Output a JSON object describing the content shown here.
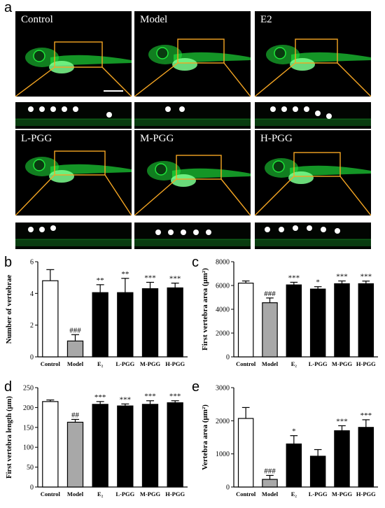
{
  "figure": {
    "panel_a_letter": "a",
    "panel_b_letter": "b",
    "panel_c_letter": "c",
    "panel_d_letter": "d",
    "panel_e_letter": "e",
    "fish_images": [
      {
        "label": "Control",
        "dots": 6
      },
      {
        "label": "Model",
        "dots": 2
      },
      {
        "label": "E2",
        "dots": 6
      },
      {
        "label": "L-PGG",
        "dots": 3
      },
      {
        "label": "M-PGG",
        "dots": 5
      },
      {
        "label": "H-PGG",
        "dots": 6
      }
    ],
    "fish_color": "#1fe53a",
    "box_color": "#f5a623"
  },
  "chart_data": [
    {
      "id": "b",
      "type": "bar",
      "categories": [
        "Control",
        "Model",
        "E₂",
        "L-PGG",
        "M-PGG",
        "H-PGG"
      ],
      "values": [
        4.8,
        1.0,
        4.05,
        4.05,
        4.3,
        4.35
      ],
      "errors": [
        0.7,
        0.4,
        0.5,
        0.9,
        0.4,
        0.3
      ],
      "annotations": [
        "",
        "###",
        "**",
        "**",
        "***",
        "***"
      ],
      "ylabel": "Number of vertebrae",
      "ylim": [
        0,
        6
      ],
      "yticks": [
        0,
        2,
        4,
        6
      ]
    },
    {
      "id": "c",
      "type": "bar",
      "categories": [
        "Control",
        "Model",
        "E₂",
        "L-PGG",
        "M-PGG",
        "H-PGG"
      ],
      "values": [
        6200,
        4550,
        6050,
        5700,
        6150,
        6150
      ],
      "errors": [
        180,
        400,
        220,
        200,
        230,
        220
      ],
      "annotations": [
        "",
        "###",
        "***",
        "*",
        "***",
        "***"
      ],
      "ylabel": "First vertebra area (μm²)",
      "ylim": [
        0,
        8000
      ],
      "yticks": [
        0,
        2000,
        4000,
        6000,
        8000
      ]
    },
    {
      "id": "d",
      "type": "bar",
      "categories": [
        "Control",
        "Model",
        "E₂",
        "L-PGG",
        "M-PGG",
        "H-PGG"
      ],
      "values": [
        215,
        163,
        208,
        204,
        208,
        212
      ],
      "errors": [
        4,
        7,
        7,
        5,
        9,
        5
      ],
      "annotations": [
        "",
        "##",
        "***",
        "***",
        "***",
        "***"
      ],
      "ylabel": "First vertebra length (μm)",
      "ylim": [
        0,
        250
      ],
      "yticks": [
        0,
        50,
        100,
        150,
        200,
        250
      ]
    },
    {
      "id": "e",
      "type": "bar",
      "categories": [
        "Control",
        "Model",
        "E₂",
        "L-PGG",
        "M-PGG",
        "H-PGG"
      ],
      "values": [
        2070,
        230,
        1300,
        930,
        1700,
        1800
      ],
      "errors": [
        330,
        120,
        250,
        200,
        150,
        230
      ],
      "annotations": [
        "",
        "###",
        "*",
        "",
        "***",
        "***"
      ],
      "ylabel": "Vertebra area (μm²)",
      "ylim": [
        0,
        3000
      ],
      "yticks": [
        0,
        1000,
        2000,
        3000
      ]
    }
  ]
}
